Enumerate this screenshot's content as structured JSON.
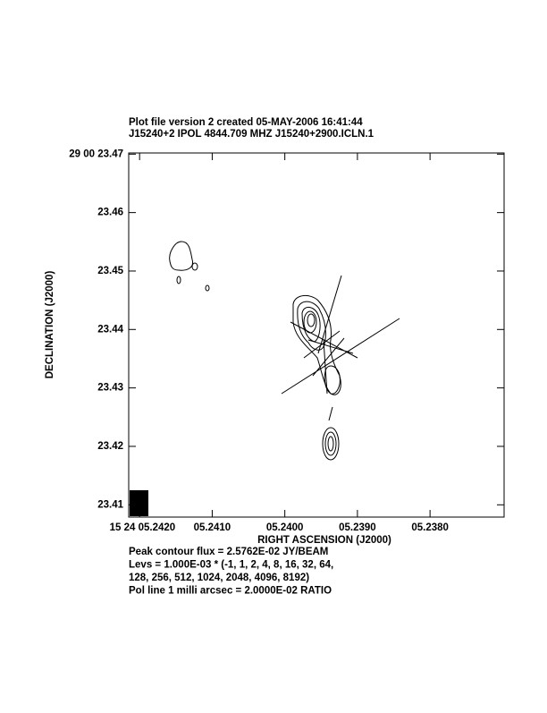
{
  "chart_data": {
    "type": "contour",
    "title": "Plot file version 2  created 05-MAY-2006 16:41:44",
    "subtitle": "J15240+2  IPOL  4844.709 MHZ  J15240+2900.ICLN.1",
    "xlabel": "RIGHT ASCENSION (J2000)",
    "ylabel": "DECLINATION (J2000)",
    "notes": [
      "Peak contour flux =  2.5762E-02 JY/BEAM",
      "Levs = 1.000E-03 * (-1, 1, 2, 4, 8, 16, 32, 64,",
      "128, 256, 512, 1024, 2048, 4096, 8192)",
      "Pol line 1 milli arcsec =  2.0000E-02 RATIO"
    ],
    "xlim": [
      5.24215,
      5.23698
    ],
    "ylim": [
      23.4079,
      23.4702
    ],
    "xticks": [
      {
        "value": 5.242,
        "label": "15 24 05.2420"
      },
      {
        "value": 5.241,
        "label": "05.2410"
      },
      {
        "value": 5.24,
        "label": "05.2400"
      },
      {
        "value": 5.239,
        "label": "05.2390"
      },
      {
        "value": 5.238,
        "label": "05.2380"
      }
    ],
    "yticks": [
      {
        "value": 23.47,
        "label": "29 00 23.47"
      },
      23.46,
      23.45,
      23.44,
      23.43,
      23.42,
      23.41
    ]
  }
}
